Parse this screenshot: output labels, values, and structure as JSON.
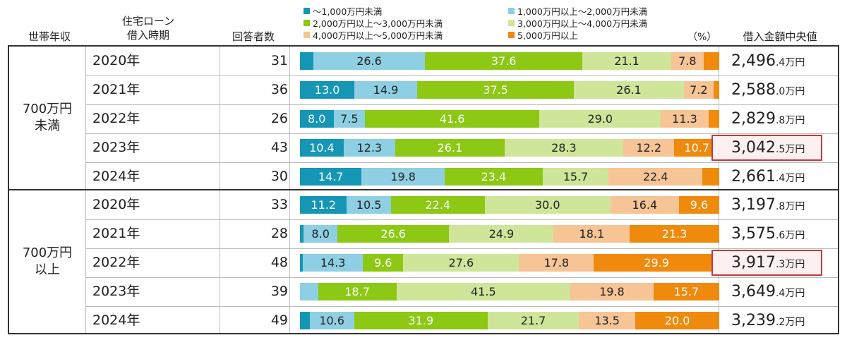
{
  "headers": {
    "income": "世帯年収",
    "period_line1": "住宅ローン",
    "period_line2": "借入時期",
    "respondents": "回答者数",
    "median": "借入金額中央値",
    "percent": "（%）"
  },
  "unit": "万円",
  "legend": [
    {
      "label": "～1,000万円未満",
      "color": "#1596b5"
    },
    {
      "label": "1,000万円以上～2,000万円未満",
      "color": "#8ecfe3"
    },
    {
      "label": "2,000万円以上～3,000万円未満",
      "color": "#8cc814"
    },
    {
      "label": "3,000万円以上～4,000万円未満",
      "color": "#cfe69a"
    },
    {
      "label": "4,000万円以上～5,000万円未満",
      "color": "#f7c496"
    },
    {
      "label": "5,000万円以上",
      "color": "#ef8a0c"
    }
  ],
  "chart_data": {
    "type": "bar",
    "stacked": true,
    "orientation": "horizontal",
    "groups": [
      {
        "label_line1": "700万円",
        "label_line2": "未満",
        "rows": [
          {
            "year": "2020年",
            "respondents": "31",
            "values": [
              3.2,
              26.6,
              37.6,
              21.1,
              7.8,
              3.7
            ],
            "labels": [
              "",
              "26.6",
              "37.6",
              "21.1",
              "7.8",
              ""
            ],
            "median_int": "2,496",
            "median_dec": ".4",
            "highlight": false
          },
          {
            "year": "2021年",
            "respondents": "36",
            "values": [
              13.0,
              14.9,
              37.5,
              26.1,
              7.2,
              1.3
            ],
            "labels": [
              "13.0",
              "14.9",
              "37.5",
              "26.1",
              "7.2",
              ""
            ],
            "median_int": "2,588",
            "median_dec": ".0",
            "highlight": false
          },
          {
            "year": "2022年",
            "respondents": "26",
            "values": [
              8.0,
              7.5,
              41.6,
              29.0,
              11.3,
              2.6
            ],
            "labels": [
              "8.0",
              "7.5",
              "41.6",
              "29.0",
              "11.3",
              ""
            ],
            "median_int": "2,829",
            "median_dec": ".8",
            "highlight": false
          },
          {
            "year": "2023年",
            "respondents": "43",
            "values": [
              10.4,
              12.3,
              26.1,
              28.3,
              12.2,
              10.7
            ],
            "labels": [
              "10.4",
              "12.3",
              "26.1",
              "28.3",
              "12.2",
              "10.7"
            ],
            "median_int": "3,042",
            "median_dec": ".5",
            "highlight": true
          },
          {
            "year": "2024年",
            "respondents": "30",
            "values": [
              14.7,
              19.8,
              23.4,
              15.7,
              22.4,
              4.0
            ],
            "labels": [
              "14.7",
              "19.8",
              "23.4",
              "15.7",
              "22.4",
              ""
            ],
            "median_int": "2,661",
            "median_dec": ".4",
            "highlight": false
          }
        ]
      },
      {
        "label_line1": "700万円",
        "label_line2": "以上",
        "rows": [
          {
            "year": "2020年",
            "respondents": "33",
            "values": [
              11.2,
              10.5,
              22.4,
              30.0,
              16.4,
              9.6
            ],
            "labels": [
              "11.2",
              "10.5",
              "22.4",
              "30.0",
              "16.4",
              "9.6"
            ],
            "median_int": "3,197",
            "median_dec": ".8",
            "highlight": false
          },
          {
            "year": "2021年",
            "respondents": "28",
            "values": [
              0.9,
              8.0,
              26.6,
              24.9,
              18.1,
              21.3
            ],
            "labels": [
              "",
              "8.0",
              "26.6",
              "24.9",
              "18.1",
              "21.3"
            ],
            "median_int": "3,575",
            "median_dec": ".6",
            "highlight": false
          },
          {
            "year": "2022年",
            "respondents": "48",
            "values": [
              0.7,
              14.3,
              9.6,
              27.6,
              17.8,
              29.9
            ],
            "labels": [
              "",
              "14.3",
              "9.6",
              "27.6",
              "17.8",
              "29.9"
            ],
            "median_int": "3,917",
            "median_dec": ".3",
            "highlight": true
          },
          {
            "year": "2023年",
            "respondents": "39",
            "values": [
              0.0,
              4.3,
              18.7,
              41.5,
              19.8,
              15.7
            ],
            "labels": [
              "",
              "",
              "18.7",
              "41.5",
              "19.8",
              "15.7"
            ],
            "median_int": "3,649",
            "median_dec": ".4",
            "highlight": false
          },
          {
            "year": "2024年",
            "respondents": "49",
            "values": [
              2.3,
              10.6,
              31.9,
              21.7,
              13.5,
              20.0
            ],
            "labels": [
              "",
              "10.6",
              "31.9",
              "21.7",
              "13.5",
              "20.0"
            ],
            "median_int": "3,239",
            "median_dec": ".2",
            "highlight": false
          }
        ]
      }
    ]
  }
}
